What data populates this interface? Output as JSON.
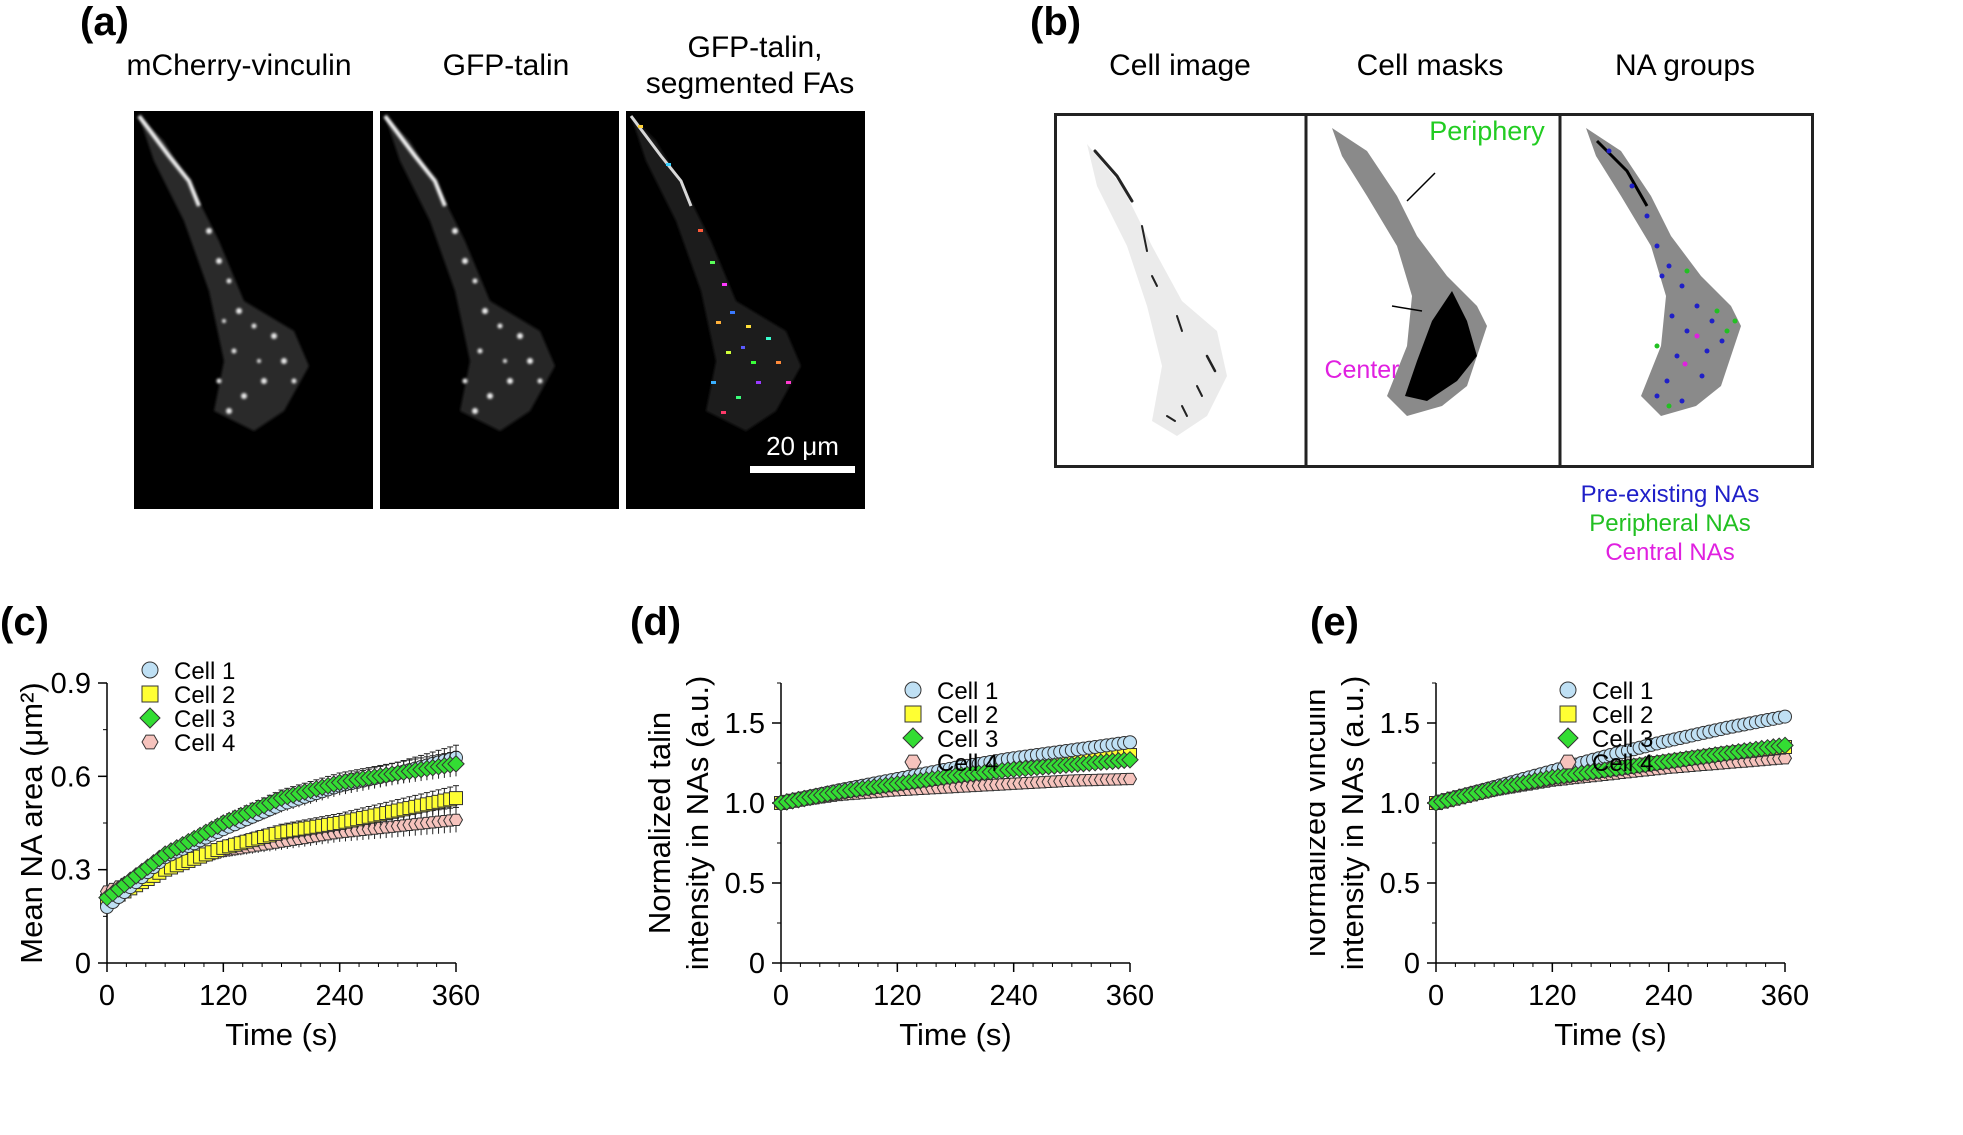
{
  "panel_a": {
    "label": "(a)",
    "titles": [
      "mCherry-vinculin",
      "GFP-talin",
      "GFP-talin,",
      "segmented FAs"
    ],
    "scale_bar_label": "20 μm"
  },
  "panel_b": {
    "label": "(b)",
    "titles": [
      "Cell image",
      "Cell masks",
      "NA groups"
    ],
    "annotations": {
      "periphery": "Periphery",
      "center": "Center"
    },
    "legend": [
      {
        "label": "Pre-existing NAs",
        "color": "#1f1fc8"
      },
      {
        "label": "Peripheral NAs",
        "color": "#22c022"
      },
      {
        "label": "Central NAs",
        "color": "#e020e0"
      }
    ],
    "colors": {
      "periphery_text": "#22cc22",
      "center_text": "#e020e0",
      "mask_gray": "#8a8a8a"
    }
  },
  "chart_data": [
    {
      "id": "c",
      "panel_label": "(c)",
      "type": "scatter",
      "title": "",
      "xlabel": "Time (s)",
      "ylabel": "Mean NA area (μm²)",
      "xlim": [
        0,
        360
      ],
      "ylim": [
        0,
        0.9
      ],
      "xticks": [
        "0",
        "120",
        "240",
        "360"
      ],
      "yticks": [
        "0",
        "0.3",
        "0.6",
        "0.9"
      ],
      "legend_position": "top-left",
      "series": [
        {
          "name": "Cell 1",
          "marker": "circle",
          "color": "#bfe0f4",
          "t": [
            0,
            60,
            120,
            180,
            240,
            300,
            360
          ],
          "values": [
            0.18,
            0.34,
            0.43,
            0.51,
            0.57,
            0.61,
            0.66
          ]
        },
        {
          "name": "Cell 2",
          "marker": "square",
          "color": "#ffff33",
          "t": [
            0,
            60,
            120,
            180,
            240,
            300,
            360
          ],
          "values": [
            0.2,
            0.3,
            0.37,
            0.42,
            0.45,
            0.49,
            0.53
          ]
        },
        {
          "name": "Cell 3",
          "marker": "diamond",
          "color": "#33dd33",
          "t": [
            0,
            60,
            120,
            180,
            240,
            300,
            360
          ],
          "values": [
            0.21,
            0.35,
            0.45,
            0.53,
            0.58,
            0.61,
            0.64
          ]
        },
        {
          "name": "Cell 4",
          "marker": "hexagon",
          "color": "#f6c3bd",
          "t": [
            0,
            60,
            120,
            180,
            240,
            300,
            360
          ],
          "values": [
            0.23,
            0.31,
            0.36,
            0.39,
            0.42,
            0.44,
            0.46
          ]
        }
      ]
    },
    {
      "id": "d",
      "panel_label": "(d)",
      "type": "scatter",
      "title": "",
      "xlabel": "Time (s)",
      "ylabel_lines": [
        "Normalized talin",
        "intensity in NAs (a.u.)"
      ],
      "xlim": [
        0,
        360
      ],
      "ylim": [
        0,
        1.75
      ],
      "xticks": [
        "0",
        "120",
        "240",
        "360"
      ],
      "yticks": [
        "0",
        "0.5",
        "1.0",
        "1.5"
      ],
      "legend_position": "center",
      "series": [
        {
          "name": "Cell 1",
          "marker": "circle",
          "color": "#bfe0f4",
          "t": [
            0,
            60,
            120,
            180,
            240,
            300,
            360
          ],
          "values": [
            1.0,
            1.08,
            1.15,
            1.22,
            1.28,
            1.33,
            1.38
          ]
        },
        {
          "name": "Cell 2",
          "marker": "square",
          "color": "#ffff33",
          "t": [
            0,
            60,
            120,
            180,
            240,
            300,
            360
          ],
          "values": [
            1.0,
            1.07,
            1.12,
            1.17,
            1.22,
            1.26,
            1.3
          ]
        },
        {
          "name": "Cell 3",
          "marker": "diamond",
          "color": "#33dd33",
          "t": [
            0,
            60,
            120,
            180,
            240,
            300,
            360
          ],
          "values": [
            1.0,
            1.07,
            1.12,
            1.17,
            1.21,
            1.24,
            1.27
          ]
        },
        {
          "name": "Cell 4",
          "marker": "hexagon",
          "color": "#f6c3bd",
          "t": [
            0,
            60,
            120,
            180,
            240,
            300,
            360
          ],
          "values": [
            1.0,
            1.05,
            1.08,
            1.1,
            1.12,
            1.14,
            1.15
          ]
        }
      ]
    },
    {
      "id": "e",
      "panel_label": "(e)",
      "type": "scatter",
      "title": "",
      "xlabel": "Time (s)",
      "ylabel_lines": [
        "Normalized vinculin",
        "intensity in NAs (a.u.)"
      ],
      "xlim": [
        0,
        360
      ],
      "ylim": [
        0,
        1.75
      ],
      "xticks": [
        "0",
        "120",
        "240",
        "360"
      ],
      "yticks": [
        "0",
        "0.5",
        "1.0",
        "1.5"
      ],
      "legend_position": "center",
      "series": [
        {
          "name": "Cell 1",
          "marker": "circle",
          "color": "#bfe0f4",
          "t": [
            0,
            60,
            120,
            180,
            240,
            300,
            360
          ],
          "values": [
            1.0,
            1.1,
            1.2,
            1.3,
            1.39,
            1.47,
            1.54
          ]
        },
        {
          "name": "Cell 2",
          "marker": "square",
          "color": "#ffff33",
          "t": [
            0,
            60,
            120,
            180,
            240,
            300,
            360
          ],
          "values": [
            1.0,
            1.09,
            1.16,
            1.21,
            1.26,
            1.31,
            1.35
          ]
        },
        {
          "name": "Cell 3",
          "marker": "diamond",
          "color": "#33dd33",
          "t": [
            0,
            60,
            120,
            180,
            240,
            300,
            360
          ],
          "values": [
            1.0,
            1.09,
            1.16,
            1.21,
            1.26,
            1.31,
            1.36
          ]
        },
        {
          "name": "Cell 4",
          "marker": "hexagon",
          "color": "#f6c3bd",
          "t": [
            0,
            60,
            120,
            180,
            240,
            300,
            360
          ],
          "values": [
            1.0,
            1.08,
            1.14,
            1.18,
            1.22,
            1.25,
            1.28
          ]
        }
      ]
    }
  ]
}
